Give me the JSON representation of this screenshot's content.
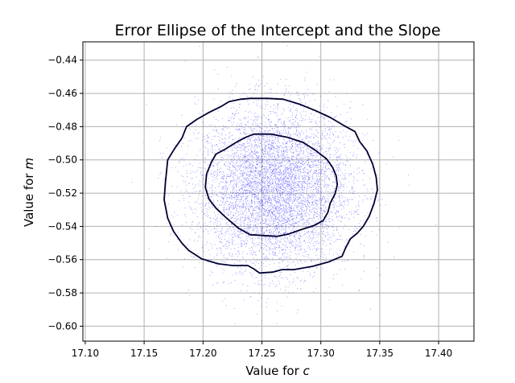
{
  "chart_data": {
    "type": "scatter",
    "title": "Error Ellipse of the Intercept and the Slope",
    "xlabel_prefix": "Value for ",
    "xlabel_var": "c",
    "ylabel_prefix": "Value for ",
    "ylabel_var": "m",
    "xlim": [
      17.098,
      17.43
    ],
    "ylim": [
      -0.609,
      -0.429
    ],
    "xticks": [
      17.1,
      17.15,
      17.2,
      17.25,
      17.3,
      17.35,
      17.4
    ],
    "xtick_labels": [
      "17.10",
      "17.15",
      "17.20",
      "17.25",
      "17.30",
      "17.35",
      "17.40"
    ],
    "yticks": [
      -0.44,
      -0.46,
      -0.48,
      -0.5,
      -0.52,
      -0.54,
      -0.56,
      -0.58,
      -0.6
    ],
    "ytick_labels": [
      "−0.44",
      "−0.46",
      "−0.48",
      "−0.50",
      "−0.52",
      "−0.54",
      "−0.56",
      "−0.58",
      "−0.60"
    ],
    "grid": true,
    "scatter": {
      "color": "#0000ff",
      "center": [
        17.26,
        -0.517
      ],
      "std": [
        0.032,
        0.024
      ],
      "count": 9000
    },
    "contours": [
      {
        "name": "inner",
        "color": "#000033",
        "points": [
          [
            17.243,
            -0.4845
          ],
          [
            17.258,
            -0.4845
          ],
          [
            17.272,
            -0.4865
          ],
          [
            17.285,
            -0.4895
          ],
          [
            17.296,
            -0.4945
          ],
          [
            17.305,
            -0.4995
          ],
          [
            17.31,
            -0.5045
          ],
          [
            17.313,
            -0.5095
          ],
          [
            17.314,
            -0.515
          ],
          [
            17.312,
            -0.5205
          ],
          [
            17.308,
            -0.526
          ],
          [
            17.306,
            -0.5315
          ],
          [
            17.302,
            -0.5365
          ],
          [
            17.294,
            -0.5395
          ],
          [
            17.283,
            -0.542
          ],
          [
            17.273,
            -0.5445
          ],
          [
            17.263,
            -0.546
          ],
          [
            17.252,
            -0.5455
          ],
          [
            17.24,
            -0.545
          ],
          [
            17.23,
            -0.541
          ],
          [
            17.22,
            -0.535
          ],
          [
            17.211,
            -0.529
          ],
          [
            17.205,
            -0.5235
          ],
          [
            17.202,
            -0.5165
          ],
          [
            17.203,
            -0.5085
          ],
          [
            17.207,
            -0.5015
          ],
          [
            17.211,
            -0.4965
          ],
          [
            17.219,
            -0.4935
          ],
          [
            17.228,
            -0.4895
          ],
          [
            17.236,
            -0.4865
          ],
          [
            17.243,
            -0.4845
          ]
        ]
      },
      {
        "name": "outer",
        "color": "#000033",
        "points": [
          [
            17.24,
            -0.463
          ],
          [
            17.255,
            -0.463
          ],
          [
            17.268,
            -0.4635
          ],
          [
            17.282,
            -0.4665
          ],
          [
            17.296,
            -0.4705
          ],
          [
            17.308,
            -0.4745
          ],
          [
            17.32,
            -0.4795
          ],
          [
            17.329,
            -0.483
          ],
          [
            17.333,
            -0.489
          ],
          [
            17.339,
            -0.4945
          ],
          [
            17.344,
            -0.5025
          ],
          [
            17.347,
            -0.5105
          ],
          [
            17.348,
            -0.518
          ],
          [
            17.345,
            -0.5265
          ],
          [
            17.341,
            -0.534
          ],
          [
            17.336,
            -0.54
          ],
          [
            17.331,
            -0.544
          ],
          [
            17.325,
            -0.5475
          ],
          [
            17.321,
            -0.553
          ],
          [
            17.318,
            -0.558
          ],
          [
            17.306,
            -0.5615
          ],
          [
            17.293,
            -0.564
          ],
          [
            17.277,
            -0.566
          ],
          [
            17.267,
            -0.566
          ],
          [
            17.259,
            -0.5675
          ],
          [
            17.248,
            -0.568
          ],
          [
            17.243,
            -0.5655
          ],
          [
            17.238,
            -0.5635
          ],
          [
            17.225,
            -0.5635
          ],
          [
            17.213,
            -0.5625
          ],
          [
            17.199,
            -0.5595
          ],
          [
            17.188,
            -0.5545
          ],
          [
            17.182,
            -0.55
          ],
          [
            17.175,
            -0.543
          ],
          [
            17.17,
            -0.535
          ],
          [
            17.167,
            -0.524
          ],
          [
            17.168,
            -0.514
          ],
          [
            17.17,
            -0.5
          ],
          [
            17.176,
            -0.493
          ],
          [
            17.182,
            -0.487
          ],
          [
            17.186,
            -0.48
          ],
          [
            17.195,
            -0.4755
          ],
          [
            17.205,
            -0.4715
          ],
          [
            17.215,
            -0.468
          ],
          [
            17.222,
            -0.465
          ],
          [
            17.232,
            -0.4635
          ],
          [
            17.24,
            -0.463
          ]
        ]
      }
    ]
  }
}
